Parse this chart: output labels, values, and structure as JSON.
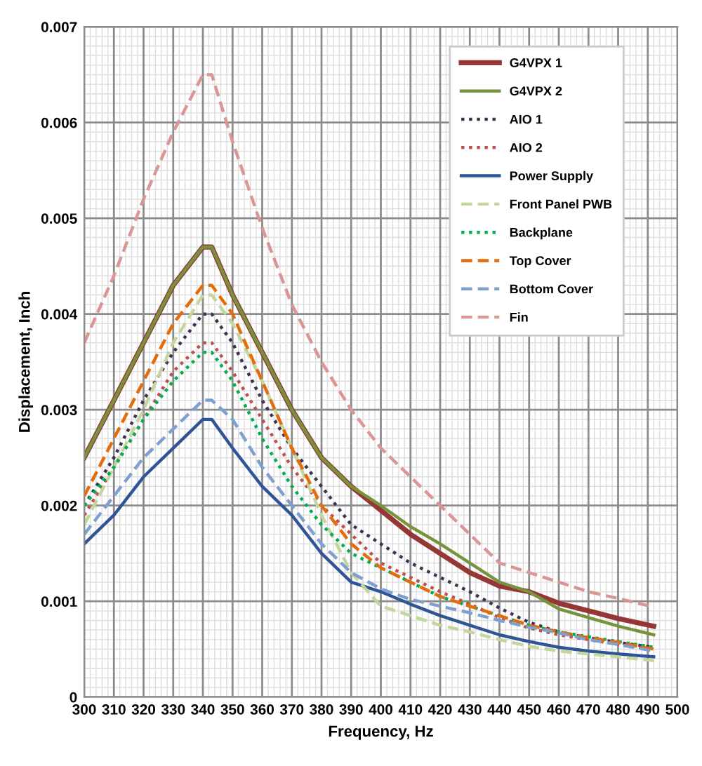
{
  "chart_data": {
    "type": "line",
    "xlabel": "Frequency, Hz",
    "ylabel": "Displacement, Inch",
    "x": [
      300,
      310,
      320,
      330,
      340,
      343,
      350,
      360,
      370,
      380,
      390,
      400,
      410,
      420,
      430,
      440,
      450,
      460,
      470,
      480,
      492
    ],
    "xlim": [
      300,
      500
    ],
    "xticks": [
      300,
      310,
      320,
      330,
      340,
      350,
      360,
      370,
      380,
      390,
      400,
      410,
      420,
      430,
      440,
      450,
      460,
      470,
      480,
      490,
      500
    ],
    "ylim": [
      0,
      0.007
    ],
    "yticks": [
      0,
      0.001,
      0.002,
      0.003,
      0.004,
      0.005,
      0.006,
      0.007
    ],
    "grid": true,
    "legend": "top right",
    "marker": "none",
    "series": [
      {
        "name": "G4VPX 1",
        "color": "#953735",
        "line_style": "solid",
        "values": [
          0.0025,
          0.0031,
          0.0037,
          0.0043,
          0.0047,
          0.0047,
          0.0042,
          0.0036,
          0.003,
          0.0025,
          0.0022,
          0.00195,
          0.0017,
          0.0015,
          0.0013,
          0.00116,
          0.0011,
          0.00098,
          0.0009,
          0.00082,
          0.00074
        ]
      },
      {
        "name": "G4VPX 2",
        "color": "#77933c",
        "line_style": "solid",
        "values": [
          0.0025,
          0.0031,
          0.0037,
          0.0043,
          0.0047,
          0.0047,
          0.0042,
          0.0036,
          0.003,
          0.0025,
          0.0022,
          0.002,
          0.00178,
          0.0016,
          0.0014,
          0.0012,
          0.0011,
          0.00092,
          0.00083,
          0.00074,
          0.00065
        ]
      },
      {
        "name": "AIO 1",
        "color": "#403152",
        "line_style": "dotted",
        "values": [
          0.002,
          0.0025,
          0.0031,
          0.0036,
          0.004,
          0.004,
          0.0037,
          0.0031,
          0.0026,
          0.0022,
          0.0018,
          0.0016,
          0.0014,
          0.00125,
          0.0011,
          0.00093,
          0.00078,
          0.00068,
          0.00062,
          0.00057,
          0.00052
        ]
      },
      {
        "name": "AIO 2",
        "color": "#c0504d",
        "line_style": "dotted",
        "values": [
          0.0019,
          0.0024,
          0.0029,
          0.0034,
          0.0037,
          0.0037,
          0.0034,
          0.0029,
          0.0024,
          0.002,
          0.0017,
          0.0014,
          0.00125,
          0.0011,
          0.00097,
          0.00083,
          0.00072,
          0.00065,
          0.0006,
          0.00055,
          0.0005
        ]
      },
      {
        "name": "Power Supply",
        "color": "#2f5597",
        "line_style": "solid",
        "values": [
          0.0016,
          0.0019,
          0.0023,
          0.0026,
          0.0029,
          0.0029,
          0.0026,
          0.0022,
          0.0019,
          0.0015,
          0.0012,
          0.0011,
          0.00097,
          0.00085,
          0.00075,
          0.00065,
          0.00058,
          0.00052,
          0.00048,
          0.00045,
          0.00042
        ]
      },
      {
        "name": "Front Panel PWB",
        "color": "#c3d69b",
        "line_style": "dashed",
        "values": [
          0.0018,
          0.0024,
          0.003,
          0.0037,
          0.0042,
          0.0042,
          0.0039,
          0.0033,
          0.0026,
          0.0019,
          0.0013,
          0.00095,
          0.00085,
          0.00075,
          0.00068,
          0.0006,
          0.00053,
          0.00048,
          0.00045,
          0.00042,
          0.00038
        ]
      },
      {
        "name": "Backplane",
        "color": "#00b050",
        "line_style": "dotted",
        "values": [
          0.002,
          0.0024,
          0.0029,
          0.0033,
          0.0036,
          0.0036,
          0.0033,
          0.0027,
          0.0022,
          0.0018,
          0.0015,
          0.00135,
          0.0012,
          0.00105,
          0.00095,
          0.00085,
          0.00075,
          0.00068,
          0.00063,
          0.00058,
          0.00052
        ]
      },
      {
        "name": "Top Cover",
        "color": "#e46c0a",
        "line_style": "dashed",
        "values": [
          0.0021,
          0.0027,
          0.0033,
          0.0039,
          0.0043,
          0.0043,
          0.004,
          0.0033,
          0.0026,
          0.002,
          0.0016,
          0.00135,
          0.0012,
          0.00105,
          0.00095,
          0.00085,
          0.00075,
          0.00068,
          0.00062,
          0.00057,
          0.0005
        ]
      },
      {
        "name": "Bottom Cover",
        "color": "#7f9fd0",
        "line_style": "dashed",
        "values": [
          0.0017,
          0.0021,
          0.0025,
          0.0028,
          0.0031,
          0.0031,
          0.0029,
          0.0024,
          0.002,
          0.0016,
          0.0013,
          0.00113,
          0.00102,
          0.00095,
          0.00088,
          0.0008,
          0.00073,
          0.00067,
          0.0006,
          0.00055,
          0.00048
        ]
      },
      {
        "name": "Fin",
        "color": "#d99694",
        "line_style": "dashed",
        "values": [
          0.0037,
          0.0044,
          0.0052,
          0.0059,
          0.0065,
          0.0065,
          0.0058,
          0.0049,
          0.0041,
          0.0035,
          0.003,
          0.0026,
          0.0023,
          0.002,
          0.0017,
          0.0014,
          0.0013,
          0.0012,
          0.0011,
          0.00103,
          0.00094
        ]
      }
    ]
  }
}
